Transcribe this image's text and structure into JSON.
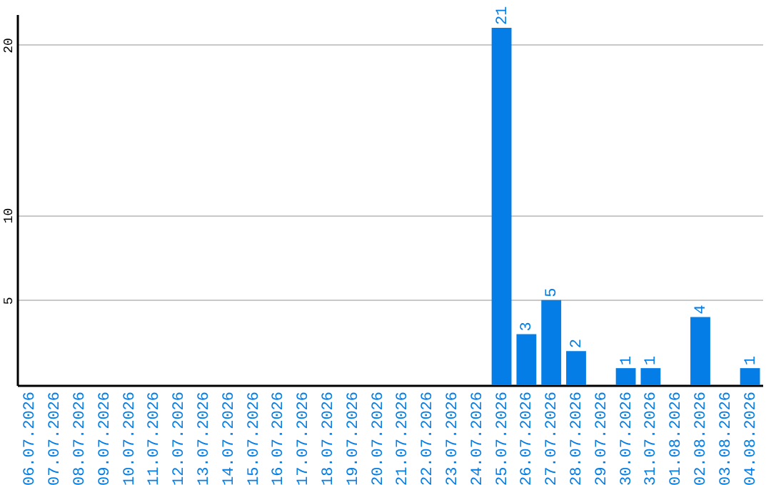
{
  "chart_data": {
    "type": "bar",
    "categories": [
      "06.07.2026",
      "07.07.2026",
      "08.07.2026",
      "09.07.2026",
      "10.07.2026",
      "11.07.2026",
      "12.07.2026",
      "13.07.2026",
      "14.07.2026",
      "15.07.2026",
      "16.07.2026",
      "17.07.2026",
      "18.07.2026",
      "19.07.2026",
      "20.07.2026",
      "21.07.2026",
      "22.07.2026",
      "23.07.2026",
      "24.07.2026",
      "25.07.2026",
      "26.07.2026",
      "27.07.2026",
      "28.07.2026",
      "29.07.2026",
      "30.07.2026",
      "31.07.2026",
      "01.08.2026",
      "02.08.2026",
      "03.08.2026",
      "04.08.2026"
    ],
    "values": [
      0,
      0,
      0,
      0,
      0,
      0,
      0,
      0,
      0,
      0,
      0,
      0,
      0,
      0,
      0,
      0,
      0,
      0,
      0,
      21,
      3,
      5,
      2,
      0,
      1,
      1,
      0,
      4,
      0,
      1
    ],
    "value_labels": [
      null,
      null,
      null,
      null,
      null,
      null,
      null,
      null,
      null,
      null,
      null,
      null,
      null,
      null,
      null,
      null,
      null,
      null,
      null,
      "21",
      "3",
      "5",
      "2",
      null,
      "1",
      "1",
      null,
      "4",
      null,
      "1"
    ],
    "color": "#047ee6",
    "ylim": [
      0,
      21.8
    ],
    "yticks": [
      5,
      10,
      20
    ],
    "grid": "y"
  }
}
